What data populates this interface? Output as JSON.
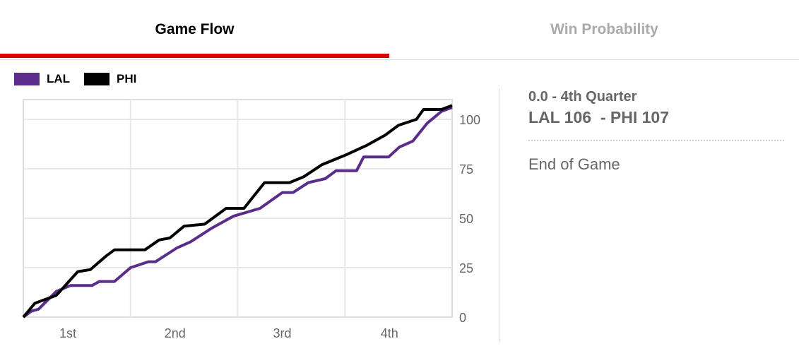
{
  "tabs": [
    {
      "label": "Game Flow",
      "active": true
    },
    {
      "label": "Win Probability",
      "active": false
    }
  ],
  "accent": "#dd0000",
  "info": {
    "period": "0.0 - 4th Quarter",
    "score": "LAL 106  - PHI 107",
    "status": "End of Game"
  },
  "chart_data": {
    "type": "line",
    "xlabel": "",
    "ylabel": "",
    "x_unit": "game minutes",
    "xlim": [
      0,
      48
    ],
    "ylim": [
      0,
      110
    ],
    "yticks": [
      0,
      25,
      50,
      75,
      100
    ],
    "xtick_labels": [
      "1st",
      "2nd",
      "3rd",
      "4th"
    ],
    "legend": "top-left",
    "series": [
      {
        "name": "LAL",
        "color": "#5a2d8a",
        "points": [
          [
            0,
            0
          ],
          [
            0.9,
            3
          ],
          [
            1.7,
            4
          ],
          [
            3.7,
            13
          ],
          [
            5.3,
            16
          ],
          [
            7.7,
            16
          ],
          [
            8.5,
            18
          ],
          [
            10.2,
            18
          ],
          [
            12,
            25
          ],
          [
            14,
            28
          ],
          [
            14.8,
            28
          ],
          [
            17.2,
            35
          ],
          [
            18.7,
            38
          ],
          [
            21.1,
            45
          ],
          [
            23.5,
            51
          ],
          [
            26.5,
            55
          ],
          [
            29,
            63
          ],
          [
            30.2,
            63
          ],
          [
            31.9,
            68
          ],
          [
            33.8,
            70
          ],
          [
            35,
            74
          ],
          [
            37.3,
            74
          ],
          [
            38.1,
            81
          ],
          [
            40.9,
            81
          ],
          [
            42.1,
            86
          ],
          [
            43.6,
            89
          ],
          [
            45.2,
            98
          ],
          [
            46.8,
            104
          ],
          [
            48,
            106
          ]
        ]
      },
      {
        "name": "PHI",
        "color": "#000000",
        "points": [
          [
            0,
            0
          ],
          [
            1.3,
            7
          ],
          [
            3.7,
            11
          ],
          [
            6.1,
            23
          ],
          [
            7.5,
            24
          ],
          [
            9.3,
            31
          ],
          [
            10.2,
            34
          ],
          [
            13.6,
            34
          ],
          [
            15.2,
            39
          ],
          [
            16.4,
            40
          ],
          [
            18,
            46
          ],
          [
            20.3,
            47
          ],
          [
            22.7,
            55
          ],
          [
            24.7,
            55
          ],
          [
            27,
            68
          ],
          [
            29.8,
            68
          ],
          [
            31.4,
            71
          ],
          [
            33.4,
            77
          ],
          [
            36.1,
            82
          ],
          [
            38.5,
            87
          ],
          [
            40.5,
            92
          ],
          [
            42,
            97
          ],
          [
            44,
            100
          ],
          [
            44.8,
            105
          ],
          [
            46.8,
            105
          ],
          [
            48,
            107
          ]
        ]
      }
    ]
  }
}
